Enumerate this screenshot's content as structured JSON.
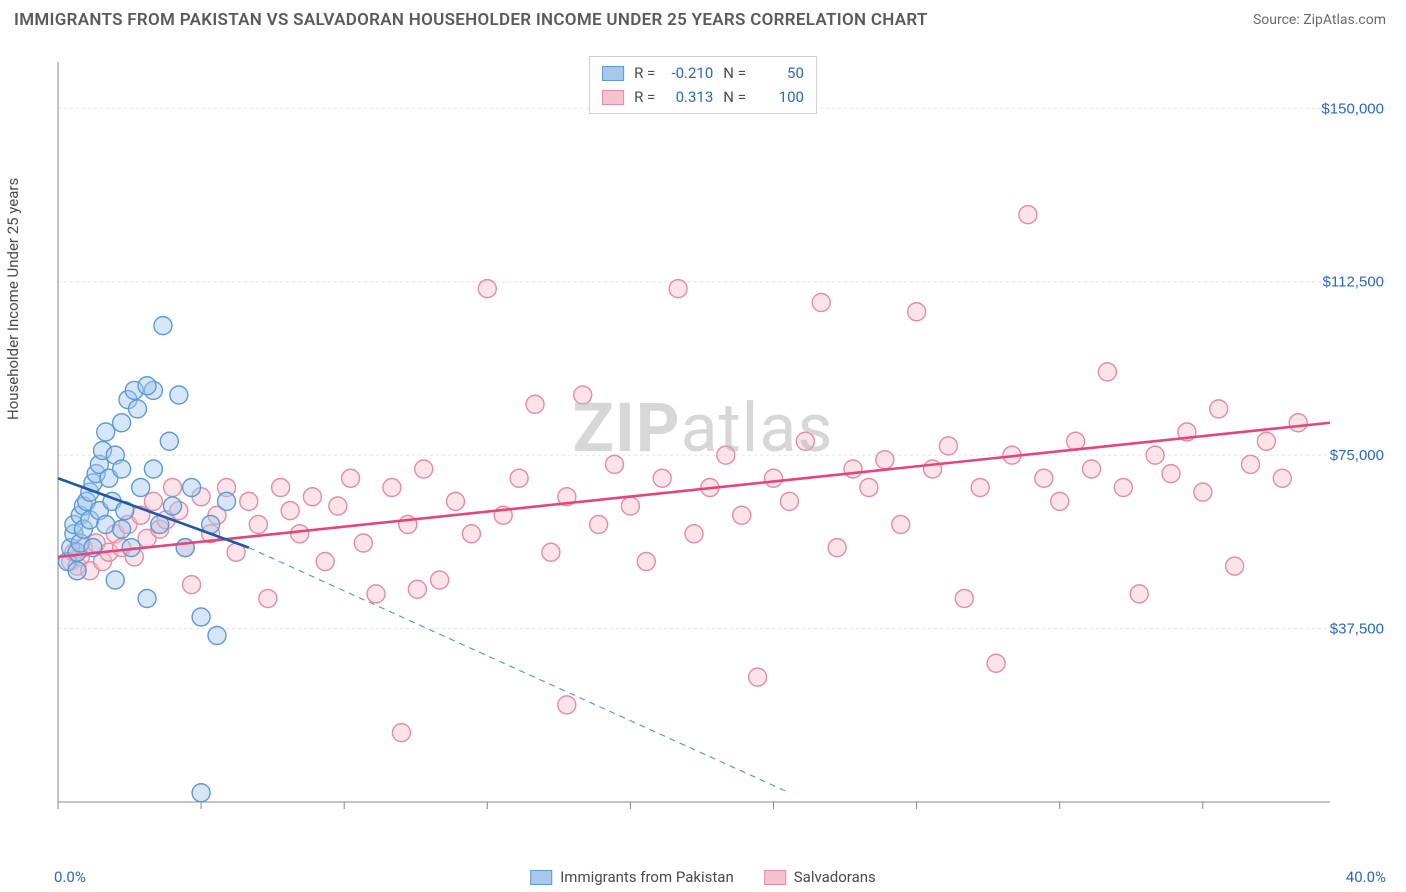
{
  "title": "IMMIGRANTS FROM PAKISTAN VS SALVADORAN HOUSEHOLDER INCOME UNDER 25 YEARS CORRELATION CHART",
  "source": "Source: ZipAtlas.com",
  "watermark_bold": "ZIP",
  "watermark_rest": "atlas",
  "y_axis_label": "Householder Income Under 25 years",
  "chart": {
    "type": "scatter",
    "xlim": [
      0,
      40
    ],
    "ylim": [
      0,
      160000
    ],
    "x_min_label": "0.0%",
    "x_max_label": "40.0%",
    "y_ticks": [
      37500,
      75000,
      112500,
      150000
    ],
    "y_tick_labels": [
      "$37,500",
      "$75,000",
      "$112,500",
      "$150,000"
    ],
    "x_ticks": [
      0,
      4.5,
      9,
      13.5,
      18,
      22.5,
      27,
      31.5,
      36
    ],
    "grid_color": "#e4e4e4",
    "axis_line_color": "#888888",
    "tick_label_color": "#2968c8",
    "background_color": "#ffffff",
    "marker_radius": 9,
    "marker_stroke_width": 1.4,
    "trend_line_width": 2.6
  },
  "series": [
    {
      "name": "Immigrants from Pakistan",
      "fill_color": "#a7c7ec",
      "stroke_color": "#5d9bd8",
      "fill_opacity": 0.45,
      "trend_color": "#1e5aa8",
      "R": "-0.210",
      "N": "50",
      "regression": {
        "x1": 0,
        "y1": 70000,
        "x2": 6,
        "y2": 55000,
        "ext_x2": 23,
        "ext_y2": 2000
      },
      "points": [
        [
          0.3,
          52000
        ],
        [
          0.4,
          55000
        ],
        [
          0.5,
          58000
        ],
        [
          0.5,
          60000
        ],
        [
          0.6,
          50000
        ],
        [
          0.6,
          54000
        ],
        [
          0.7,
          56000
        ],
        [
          0.7,
          62000
        ],
        [
          0.8,
          64000
        ],
        [
          0.8,
          59000
        ],
        [
          0.9,
          65000
        ],
        [
          1.0,
          61000
        ],
        [
          1.0,
          67000
        ],
        [
          1.1,
          55000
        ],
        [
          1.1,
          69000
        ],
        [
          1.2,
          71000
        ],
        [
          1.3,
          63000
        ],
        [
          1.3,
          73000
        ],
        [
          1.4,
          76000
        ],
        [
          1.5,
          60000
        ],
        [
          1.5,
          80000
        ],
        [
          1.6,
          70000
        ],
        [
          1.7,
          65000
        ],
        [
          1.8,
          75000
        ],
        [
          1.8,
          48000
        ],
        [
          2.0,
          82000
        ],
        [
          2.0,
          72000
        ],
        [
          2.1,
          63000
        ],
        [
          2.2,
          87000
        ],
        [
          2.3,
          55000
        ],
        [
          2.4,
          89000
        ],
        [
          2.5,
          85000
        ],
        [
          2.6,
          68000
        ],
        [
          2.8,
          44000
        ],
        [
          3.0,
          72000
        ],
        [
          3.0,
          89000
        ],
        [
          3.2,
          60000
        ],
        [
          3.3,
          103000
        ],
        [
          3.5,
          78000
        ],
        [
          3.6,
          64000
        ],
        [
          3.8,
          88000
        ],
        [
          4.0,
          55000
        ],
        [
          4.2,
          68000
        ],
        [
          4.5,
          40000
        ],
        [
          4.8,
          60000
        ],
        [
          5.0,
          36000
        ],
        [
          5.3,
          65000
        ],
        [
          4.5,
          2000
        ],
        [
          2.8,
          90000
        ],
        [
          2.0,
          59000
        ]
      ]
    },
    {
      "name": "Salvadorans",
      "fill_color": "#f5c3cf",
      "stroke_color": "#e88ba4",
      "fill_opacity": 0.45,
      "trend_color": "#e6447a",
      "R": "0.313",
      "N": "100",
      "regression": {
        "x1": 0,
        "y1": 53000,
        "x2": 40,
        "y2": 82000
      },
      "points": [
        [
          0.4,
          52000
        ],
        [
          0.5,
          54000
        ],
        [
          0.6,
          51000
        ],
        [
          0.7,
          53000
        ],
        [
          0.8,
          55000
        ],
        [
          1.0,
          50000
        ],
        [
          1.2,
          56000
        ],
        [
          1.4,
          52000
        ],
        [
          1.6,
          54000
        ],
        [
          1.8,
          58000
        ],
        [
          2.0,
          55000
        ],
        [
          2.2,
          60000
        ],
        [
          2.4,
          53000
        ],
        [
          2.6,
          62000
        ],
        [
          2.8,
          57000
        ],
        [
          3.0,
          65000
        ],
        [
          3.2,
          59000
        ],
        [
          3.4,
          61000
        ],
        [
          3.6,
          68000
        ],
        [
          3.8,
          63000
        ],
        [
          4.0,
          55000
        ],
        [
          4.2,
          47000
        ],
        [
          4.5,
          66000
        ],
        [
          4.8,
          58000
        ],
        [
          5.0,
          62000
        ],
        [
          5.3,
          68000
        ],
        [
          5.6,
          54000
        ],
        [
          6.0,
          65000
        ],
        [
          6.3,
          60000
        ],
        [
          6.6,
          44000
        ],
        [
          7.0,
          68000
        ],
        [
          7.3,
          63000
        ],
        [
          7.6,
          58000
        ],
        [
          8.0,
          66000
        ],
        [
          8.4,
          52000
        ],
        [
          8.8,
          64000
        ],
        [
          9.2,
          70000
        ],
        [
          9.6,
          56000
        ],
        [
          10.0,
          45000
        ],
        [
          10.5,
          68000
        ],
        [
          11.0,
          60000
        ],
        [
          11.5,
          72000
        ],
        [
          12.0,
          48000
        ],
        [
          12.5,
          65000
        ],
        [
          13.0,
          58000
        ],
        [
          13.5,
          111000
        ],
        [
          14.0,
          62000
        ],
        [
          14.5,
          70000
        ],
        [
          15.0,
          86000
        ],
        [
          15.5,
          54000
        ],
        [
          16.0,
          21000
        ],
        [
          16.0,
          66000
        ],
        [
          16.5,
          88000
        ],
        [
          17.0,
          60000
        ],
        [
          17.5,
          73000
        ],
        [
          18.0,
          64000
        ],
        [
          18.5,
          52000
        ],
        [
          19.0,
          70000
        ],
        [
          19.5,
          111000
        ],
        [
          20.0,
          58000
        ],
        [
          20.5,
          68000
        ],
        [
          21.0,
          75000
        ],
        [
          21.5,
          62000
        ],
        [
          22.0,
          27000
        ],
        [
          22.5,
          70000
        ],
        [
          23.0,
          65000
        ],
        [
          23.5,
          78000
        ],
        [
          24.0,
          108000
        ],
        [
          24.5,
          55000
        ],
        [
          25.0,
          72000
        ],
        [
          25.5,
          68000
        ],
        [
          26.0,
          74000
        ],
        [
          26.5,
          60000
        ],
        [
          27.0,
          106000
        ],
        [
          27.5,
          72000
        ],
        [
          28.0,
          77000
        ],
        [
          28.5,
          44000
        ],
        [
          29.0,
          68000
        ],
        [
          29.5,
          30000
        ],
        [
          30.0,
          75000
        ],
        [
          30.5,
          127000
        ],
        [
          31.0,
          70000
        ],
        [
          31.5,
          65000
        ],
        [
          32.0,
          78000
        ],
        [
          32.5,
          72000
        ],
        [
          33.0,
          93000
        ],
        [
          33.5,
          68000
        ],
        [
          34.0,
          45000
        ],
        [
          34.5,
          75000
        ],
        [
          35.0,
          71000
        ],
        [
          35.5,
          80000
        ],
        [
          36.0,
          67000
        ],
        [
          36.5,
          85000
        ],
        [
          37.0,
          51000
        ],
        [
          37.5,
          73000
        ],
        [
          38.0,
          78000
        ],
        [
          38.5,
          70000
        ],
        [
          39.0,
          82000
        ],
        [
          10.8,
          15000
        ],
        [
          11.3,
          46000
        ]
      ]
    }
  ],
  "legend_labels": {
    "R_label": "R =",
    "N_label": "N ="
  }
}
